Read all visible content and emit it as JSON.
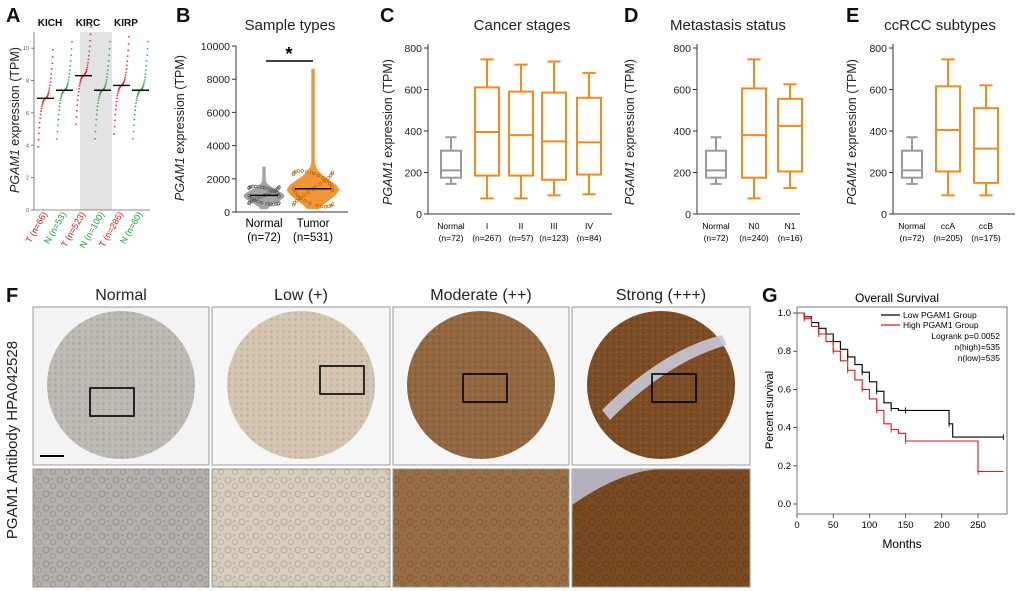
{
  "panels": {
    "A": {
      "letter": "A",
      "ylabel_gene": "PGAM1",
      "ylabel_rest": " expression (TPM)",
      "groups": [
        "KICH",
        "KIRC",
        "KIRP"
      ],
      "ticks": [
        "0",
        "2",
        "4",
        "6",
        "8",
        "10"
      ],
      "samples": [
        {
          "label": "T (n=66)",
          "type": "T",
          "median": 6.9
        },
        {
          "label": "N (n=53)",
          "type": "N",
          "median": 7.4
        },
        {
          "label": "T (n=523)",
          "type": "T",
          "median": 8.3
        },
        {
          "label": "N (n=100)",
          "type": "N",
          "median": 7.4
        },
        {
          "label": "T (n=286)",
          "type": "T",
          "median": 7.7
        },
        {
          "label": "N (n=60)",
          "type": "N",
          "median": 7.4
        }
      ]
    },
    "B": {
      "letter": "B",
      "title": "Sample types",
      "ylabel_gene": "PGAM1",
      "ylabel_rest": " expression (TPM)",
      "ticks": [
        "0",
        "2000",
        "4000",
        "6000",
        "8000",
        "10000"
      ],
      "cats": [
        {
          "name": "Normal",
          "n": "(n=72)"
        },
        {
          "name": "Tumor",
          "n": "(n=531)"
        }
      ],
      "sig": "*"
    },
    "C": {
      "letter": "C",
      "title": "Cancer stages",
      "ylabel_gene": "PGAM1",
      "ylabel_rest": " expression (TPM)",
      "ticks": [
        "0",
        "200",
        "400",
        "600",
        "800"
      ],
      "cats": [
        {
          "name": "Normal",
          "n": "(n=72)"
        },
        {
          "name": "I",
          "n": "(n=267)"
        },
        {
          "name": "II",
          "n": "(n=57)"
        },
        {
          "name": "III",
          "n": "(n=123)"
        },
        {
          "name": "IV",
          "n": "(n=84)"
        }
      ]
    },
    "D": {
      "letter": "D",
      "title": "Metastasis status",
      "ylabel_gene": "PGAM1",
      "ylabel_rest": " expression (TPM)",
      "ticks": [
        "0",
        "200",
        "400",
        "600",
        "800"
      ],
      "cats": [
        {
          "name": "Normal",
          "n": "(n=72)"
        },
        {
          "name": "N0",
          "n": "(n=240)"
        },
        {
          "name": "N1",
          "n": "(n=16)"
        }
      ]
    },
    "E": {
      "letter": "E",
      "title": "ccRCC subtypes",
      "ylabel_gene": "PGAM1",
      "ylabel_rest": " expression (TPM)",
      "ticks": [
        "0",
        "200",
        "400",
        "600",
        "800"
      ],
      "cats": [
        {
          "name": "Normal",
          "n": "(n=72)"
        },
        {
          "name": "ccA",
          "n": "(n=205)"
        },
        {
          "name": "ccB",
          "n": "(n=175)"
        }
      ]
    },
    "F": {
      "letter": "F",
      "ylabel": "PGAM1 Antibody HPA042528",
      "columns": [
        "Normal",
        "Low (+)",
        "Moderate (++)",
        "Strong (+++)"
      ]
    },
    "G": {
      "letter": "G",
      "title": "Overall Survival",
      "xlabel": "Months",
      "ylabel": "Percent survival",
      "xticks": [
        "0",
        "50",
        "100",
        "150",
        "200",
        "250"
      ],
      "yticks": [
        "0.0",
        "0.2",
        "0.4",
        "0.6",
        "0.8",
        "1.0"
      ],
      "legend": [
        {
          "name": "Low PGAM1 Group"
        },
        {
          "name": "High PGAM1 Group"
        }
      ],
      "stats": [
        "Logrank p=0.0052",
        "n(high)=535",
        "n(low)=535"
      ]
    }
  },
  "colors": {
    "orange": "#F28A1E",
    "gray": "#9A9A9A",
    "red": "#E8151A",
    "green": "#1AA340",
    "brown": "#7A4A1E"
  },
  "chart_data": [
    {
      "panel": "A",
      "type": "scatter",
      "title": "",
      "ylabel": "PGAM1 expression (TPM)",
      "ylim": [
        0,
        11
      ],
      "categories": [
        "KICH T",
        "KICH N",
        "KIRC T",
        "KIRC N",
        "KIRP T",
        "KIRP N"
      ],
      "medians": [
        6.9,
        7.4,
        8.3,
        7.4,
        7.7,
        7.4
      ]
    },
    {
      "panel": "B",
      "type": "violin",
      "title": "Sample types",
      "ylabel": "PGAM1 expression (TPM)",
      "ylim": [
        0,
        10000
      ],
      "categories": [
        "Normal",
        "Tumor"
      ],
      "medians": [
        1000,
        1400
      ],
      "max": [
        2700,
        8600
      ],
      "significance": "*"
    },
    {
      "panel": "C",
      "type": "box",
      "title": "Cancer stages",
      "ylabel": "PGAM1 expression (TPM)",
      "ylim": [
        0,
        800
      ],
      "categories": [
        "Normal",
        "I",
        "II",
        "III",
        "IV"
      ],
      "series": [
        {
          "name": "Normal",
          "min": 145,
          "q1": 175,
          "median": 210,
          "q3": 305,
          "max": 370
        },
        {
          "name": "I",
          "min": 75,
          "q1": 185,
          "median": 395,
          "q3": 610,
          "max": 745
        },
        {
          "name": "II",
          "min": 75,
          "q1": 185,
          "median": 380,
          "q3": 590,
          "max": 720
        },
        {
          "name": "III",
          "min": 90,
          "q1": 165,
          "median": 350,
          "q3": 585,
          "max": 735
        },
        {
          "name": "IV",
          "min": 95,
          "q1": 190,
          "median": 345,
          "q3": 560,
          "max": 680
        }
      ]
    },
    {
      "panel": "D",
      "type": "box",
      "title": "Metastasis status",
      "ylabel": "PGAM1 expression (TPM)",
      "ylim": [
        0,
        800
      ],
      "categories": [
        "Normal",
        "N0",
        "N1"
      ],
      "series": [
        {
          "name": "Normal",
          "min": 145,
          "q1": 175,
          "median": 210,
          "q3": 305,
          "max": 370
        },
        {
          "name": "N0",
          "min": 75,
          "q1": 175,
          "median": 380,
          "q3": 605,
          "max": 745
        },
        {
          "name": "N1",
          "min": 125,
          "q1": 205,
          "median": 425,
          "q3": 555,
          "max": 625
        }
      ]
    },
    {
      "panel": "E",
      "type": "box",
      "title": "ccRCC subtypes",
      "ylabel": "PGAM1 expression (TPM)",
      "ylim": [
        0,
        800
      ],
      "categories": [
        "Normal",
        "ccA",
        "ccB"
      ],
      "series": [
        {
          "name": "Normal",
          "min": 145,
          "q1": 175,
          "median": 210,
          "q3": 305,
          "max": 370
        },
        {
          "name": "ccA",
          "min": 90,
          "q1": 205,
          "median": 405,
          "q3": 615,
          "max": 745
        },
        {
          "name": "ccB",
          "min": 90,
          "q1": 150,
          "median": 315,
          "q3": 510,
          "max": 620
        }
      ]
    },
    {
      "panel": "G",
      "type": "line",
      "title": "Overall Survival",
      "xlabel": "Months",
      "ylabel": "Percent survival",
      "xlim": [
        0,
        290
      ],
      "ylim": [
        0,
        1
      ],
      "series": [
        {
          "name": "Low PGAM1 Group",
          "color": "#000000",
          "x": [
            0,
            10,
            20,
            30,
            40,
            50,
            60,
            70,
            80,
            90,
            100,
            110,
            120,
            130,
            140,
            150,
            200,
            210,
            215,
            285
          ],
          "y": [
            1.0,
            0.98,
            0.95,
            0.92,
            0.89,
            0.85,
            0.81,
            0.77,
            0.73,
            0.69,
            0.64,
            0.59,
            0.53,
            0.5,
            0.49,
            0.49,
            0.49,
            0.42,
            0.35,
            0.35
          ]
        },
        {
          "name": "High PGAM1 Group",
          "color": "#E8151A",
          "x": [
            0,
            10,
            20,
            30,
            40,
            50,
            60,
            70,
            80,
            90,
            100,
            110,
            120,
            130,
            140,
            150,
            245,
            250,
            285
          ],
          "y": [
            1.0,
            0.97,
            0.93,
            0.89,
            0.85,
            0.8,
            0.75,
            0.7,
            0.65,
            0.6,
            0.55,
            0.49,
            0.42,
            0.39,
            0.37,
            0.33,
            0.33,
            0.17,
            0.17
          ]
        }
      ]
    }
  ]
}
